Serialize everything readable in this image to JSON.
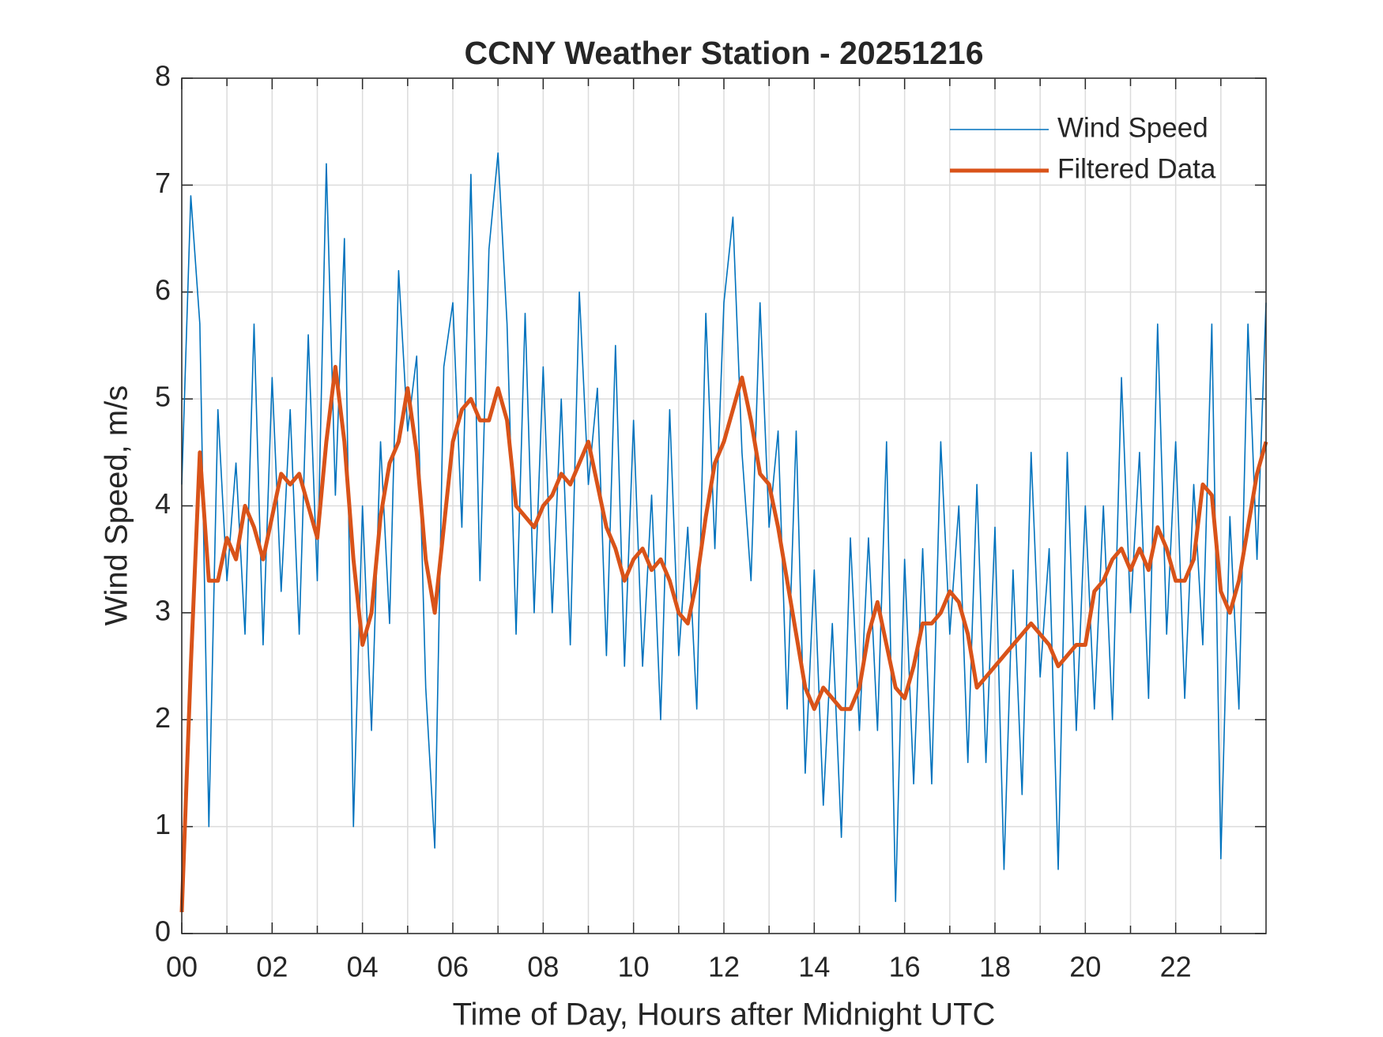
{
  "chart_data": {
    "type": "line",
    "title": "CCNY Weather Station - 20251216",
    "xlabel": "Time of Day, Hours after Midnight UTC",
    "ylabel": "Wind Speed, m/s",
    "x": [
      0,
      0.2,
      0.4,
      0.6,
      0.8,
      1,
      1.2,
      1.4,
      1.6,
      1.8,
      2,
      2.2,
      2.4,
      2.6,
      2.8,
      3,
      3.2,
      3.4,
      3.6,
      3.8,
      4,
      4.2,
      4.4,
      4.6,
      4.8,
      5,
      5.2,
      5.4,
      5.6,
      5.8,
      6,
      6.2,
      6.4,
      6.6,
      6.8,
      7,
      7.2,
      7.4,
      7.6,
      7.8,
      8,
      8.2,
      8.4,
      8.6,
      8.8,
      9,
      9.2,
      9.4,
      9.6,
      9.8,
      10,
      10.2,
      10.4,
      10.6,
      10.8,
      11,
      11.2,
      11.4,
      11.6,
      11.8,
      12,
      12.2,
      12.4,
      12.6,
      12.8,
      13,
      13.2,
      13.4,
      13.6,
      13.8,
      14,
      14.2,
      14.4,
      14.6,
      14.8,
      15,
      15.2,
      15.4,
      15.6,
      15.8,
      16,
      16.2,
      16.4,
      16.6,
      16.8,
      17,
      17.2,
      17.4,
      17.6,
      17.8,
      18,
      18.2,
      18.4,
      18.6,
      18.8,
      19,
      19.2,
      19.4,
      19.6,
      19.8,
      20,
      20.2,
      20.4,
      20.6,
      20.8,
      21,
      21.2,
      21.4,
      21.6,
      21.8,
      22,
      22.2,
      22.4,
      22.6,
      22.8,
      23,
      23.2,
      23.4,
      23.6,
      23.8,
      24
    ],
    "series": [
      {
        "name": "Wind Speed",
        "color": "#0072bd",
        "width": 1.6,
        "values": [
          4.2,
          6.9,
          5.7,
          1.0,
          4.9,
          3.3,
          4.4,
          2.8,
          5.7,
          2.7,
          5.2,
          3.2,
          4.9,
          2.8,
          5.6,
          3.3,
          7.2,
          4.1,
          6.5,
          1.0,
          4.0,
          1.9,
          4.6,
          2.9,
          6.2,
          4.7,
          5.4,
          2.3,
          0.8,
          5.3,
          5.9,
          3.8,
          7.1,
          3.3,
          6.4,
          7.3,
          5.7,
          2.8,
          5.8,
          3.0,
          5.3,
          3.0,
          5.0,
          2.7,
          6.0,
          4.2,
          5.1,
          2.6,
          5.5,
          2.5,
          4.8,
          2.5,
          4.1,
          2.0,
          4.9,
          2.6,
          3.8,
          2.1,
          5.8,
          3.6,
          5.9,
          6.7,
          4.5,
          3.3,
          5.9,
          3.8,
          4.7,
          2.1,
          4.7,
          1.5,
          3.4,
          1.2,
          2.9,
          0.9,
          3.7,
          1.9,
          3.7,
          1.9,
          4.6,
          0.3,
          3.5,
          1.4,
          3.6,
          1.4,
          4.6,
          2.8,
          4.0,
          1.6,
          4.2,
          1.6,
          3.8,
          0.6,
          3.4,
          1.3,
          4.5,
          2.4,
          3.6,
          0.6,
          4.5,
          1.9,
          4.0,
          2.1,
          4.0,
          2.0,
          5.2,
          3.0,
          4.5,
          2.2,
          5.7,
          2.8,
          4.6,
          2.2,
          4.2,
          2.7,
          5.7,
          0.7,
          3.9,
          2.1,
          5.7,
          3.5,
          5.9
        ]
      },
      {
        "name": "Filtered Data",
        "color": "#d95319",
        "width": 5,
        "values": [
          0.2,
          2.5,
          4.5,
          3.3,
          3.3,
          3.7,
          3.5,
          4.0,
          3.8,
          3.5,
          3.9,
          4.3,
          4.2,
          4.3,
          4.0,
          3.7,
          4.6,
          5.3,
          4.6,
          3.5,
          2.7,
          3.0,
          3.9,
          4.4,
          4.6,
          5.1,
          4.5,
          3.5,
          3.0,
          3.8,
          4.6,
          4.9,
          5.0,
          4.8,
          4.8,
          5.1,
          4.8,
          4.0,
          3.9,
          3.8,
          4.0,
          4.1,
          4.3,
          4.2,
          4.4,
          4.6,
          4.2,
          3.8,
          3.6,
          3.3,
          3.5,
          3.6,
          3.4,
          3.5,
          3.3,
          3.0,
          2.9,
          3.3,
          3.9,
          4.4,
          4.6,
          4.9,
          5.2,
          4.8,
          4.3,
          4.2,
          3.8,
          3.3,
          2.8,
          2.3,
          2.1,
          2.3,
          2.2,
          2.1,
          2.1,
          2.3,
          2.8,
          3.1,
          2.7,
          2.3,
          2.2,
          2.5,
          2.9,
          2.9,
          3.0,
          3.2,
          3.1,
          2.8,
          2.3,
          2.4,
          2.5,
          2.6,
          2.7,
          2.8,
          2.9,
          2.8,
          2.7,
          2.5,
          2.6,
          2.7,
          2.7,
          3.2,
          3.3,
          3.5,
          3.6,
          3.4,
          3.6,
          3.4,
          3.8,
          3.6,
          3.3,
          3.3,
          3.5,
          4.2,
          4.1,
          3.2,
          3.0,
          3.3,
          3.8,
          4.3,
          4.6
        ]
      }
    ],
    "xlim": [
      0,
      24
    ],
    "xticks": [
      {
        "value": 0,
        "label": "00"
      },
      {
        "value": 2,
        "label": "02"
      },
      {
        "value": 4,
        "label": "04"
      },
      {
        "value": 6,
        "label": "06"
      },
      {
        "value": 8,
        "label": "08"
      },
      {
        "value": 10,
        "label": "10"
      },
      {
        "value": 12,
        "label": "12"
      },
      {
        "value": 14,
        "label": "14"
      },
      {
        "value": 16,
        "label": "16"
      },
      {
        "value": 18,
        "label": "18"
      },
      {
        "value": 20,
        "label": "20"
      },
      {
        "value": 22,
        "label": "22"
      }
    ],
    "xminorticks": [
      1,
      3,
      5,
      7,
      9,
      11,
      13,
      15,
      17,
      19,
      21,
      23
    ],
    "ylim": [
      0,
      8
    ],
    "yticks": [
      0,
      1,
      2,
      3,
      4,
      5,
      6,
      7,
      8
    ],
    "grid": true,
    "legend": "upper right"
  }
}
